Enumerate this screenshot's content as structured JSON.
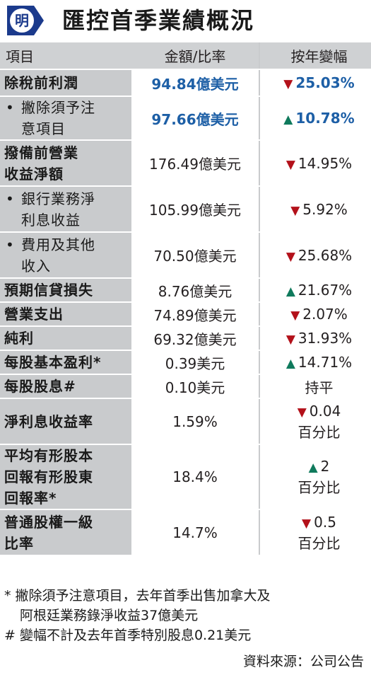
{
  "header": {
    "logo_char": "明",
    "title": "匯控首季業績概況"
  },
  "table": {
    "col_item": "項目",
    "col_amount": "金額/比率",
    "col_change": "按年變幅",
    "rows": [
      {
        "label": "除稅前利潤",
        "value": "94.84億美元",
        "dir": "down",
        "change": "25.03%"
      },
      {
        "label_l1": "撇除須予注",
        "label_l2": "意項目",
        "bullet": "•",
        "value": "97.66億美元",
        "dir": "up",
        "change": "10.78%"
      },
      {
        "label_l1": "撥備前營業",
        "label_l2": "收益淨額",
        "value": "176.49億美元",
        "dir": "down",
        "change": "14.95%"
      },
      {
        "label_l1": "銀行業務淨",
        "label_l2": "利息收益",
        "bullet": "•",
        "value": "105.99億美元",
        "dir": "down",
        "change": "5.92%"
      },
      {
        "label_l1": "費用及其他",
        "label_l2": "收入",
        "bullet": "•",
        "value": "70.50億美元",
        "dir": "down",
        "change": "25.68%"
      },
      {
        "label": "預期信貸損失",
        "value": "8.76億美元",
        "dir": "up",
        "change": "21.67%"
      },
      {
        "label": "營業支出",
        "value": "74.89億美元",
        "dir": "down",
        "change": "2.07%"
      },
      {
        "label": "純利",
        "value": "69.32億美元",
        "dir": "down",
        "change": "31.93%"
      },
      {
        "label": "每股基本盈利*",
        "value": "0.39美元",
        "dir": "up",
        "change": "14.71%"
      },
      {
        "label": "每股股息#",
        "value": "0.10美元",
        "change": "持平"
      },
      {
        "label": "淨利息收益率",
        "value": "1.59%",
        "dir": "down",
        "change": "0.04",
        "change_l2": "百分比"
      },
      {
        "label_l1": "平均有形股本",
        "label_l2": "回報有形股東",
        "label_l3": "回報率*",
        "value": "18.4%",
        "dir": "up",
        "change": "2",
        "change_l2": "百分比"
      },
      {
        "label_l1": "普通股權一級",
        "label_l2": "比率",
        "value": "14.7%",
        "dir": "down",
        "change": "0.5",
        "change_l2": "百分比"
      }
    ]
  },
  "notes": {
    "n1_l1": "* 撇除須予注意項目，去年首季出售加拿大及",
    "n1_l2": "阿根廷業務錄淨收益37億美元",
    "n2": "# 變幅不計及去年首季特別股息0.21美元",
    "source": "資料來源：公司公告"
  },
  "colors": {
    "highlight_blue": "#1d5fa6",
    "down_red": "#b3111a",
    "up_green": "#0f7a5c",
    "label_gray": "#c9cbcd"
  },
  "icons": {
    "down": "triangle-down-icon",
    "up": "triangle-up-icon"
  }
}
